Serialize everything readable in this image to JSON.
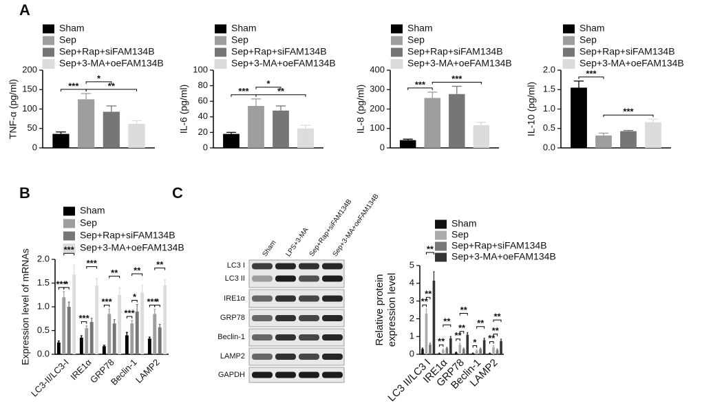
{
  "panel_labels": [
    "A",
    "B",
    "C"
  ],
  "blot": {
    "columns": [
      "Sham",
      "LPS+3-MA",
      "Sep+Rap+siFAM134B",
      "Sep+3-MA+oeFAM134B"
    ],
    "rows": [
      "LC3 I",
      "LC3 II",
      "IRE1α",
      "GRP78",
      "Beclin-1",
      "LAMP2",
      "GAPDH"
    ]
  },
  "chart_data": [
    {
      "type": "bar",
      "y_label": "TNF-α (pg/ml)",
      "ylim": [
        0,
        200
      ],
      "yticks": [
        0,
        50,
        100,
        150,
        200
      ],
      "series": [
        {
          "name": "Sham",
          "color": "#000000",
          "values": [
            36
          ],
          "errors": [
            5
          ]
        },
        {
          "name": "Sep",
          "color": "#9e9e9e",
          "values": [
            125
          ],
          "errors": [
            15
          ]
        },
        {
          "name": "Sep+Rap+siFAM134B",
          "color": "#767676",
          "values": [
            93
          ],
          "errors": [
            15
          ]
        },
        {
          "name": "Sep+3-MA+oeFAM134B",
          "color": "#dcdcdc",
          "values": [
            62
          ],
          "errors": [
            8
          ]
        }
      ],
      "annotations": [
        "***",
        "*",
        "**"
      ]
    },
    {
      "type": "bar",
      "y_label": "IL-6 (pg/ml)",
      "ylim": [
        0,
        100
      ],
      "yticks": [
        0,
        20,
        40,
        60,
        80,
        100
      ],
      "series": [
        {
          "name": "Sham",
          "color": "#000000",
          "values": [
            18
          ],
          "errors": [
            2
          ]
        },
        {
          "name": "Sep",
          "color": "#9e9e9e",
          "values": [
            54
          ],
          "errors": [
            9
          ]
        },
        {
          "name": "Sep+Rap+siFAM134B",
          "color": "#767676",
          "values": [
            48
          ],
          "errors": [
            6
          ]
        },
        {
          "name": "Sep+3-MA+oeFAM134B",
          "color": "#dcdcdc",
          "values": [
            25
          ],
          "errors": [
            4
          ]
        }
      ],
      "annotations": [
        "***",
        "*",
        "**"
      ]
    },
    {
      "type": "bar",
      "y_label": "IL-8 (pg/ml)",
      "ylim": [
        0,
        400
      ],
      "yticks": [
        0,
        100,
        200,
        300,
        400
      ],
      "series": [
        {
          "name": "Sham",
          "color": "#000000",
          "values": [
            40
          ],
          "errors": [
            5
          ]
        },
        {
          "name": "Sep",
          "color": "#9e9e9e",
          "values": [
            257
          ],
          "errors": [
            30
          ]
        },
        {
          "name": "Sep+Rap+siFAM134B",
          "color": "#767676",
          "values": [
            277
          ],
          "errors": [
            40
          ]
        },
        {
          "name": "Sep+3-MA+oeFAM134B",
          "color": "#dcdcdc",
          "values": [
            117
          ],
          "errors": [
            15
          ]
        }
      ],
      "annotations": [
        "***",
        "***"
      ]
    },
    {
      "type": "bar",
      "y_label": "IL-10 (pg/ml)",
      "ylim": [
        0,
        2
      ],
      "yticks": [
        {
          "value": 0,
          "label": "0.0"
        },
        0.5,
        {
          "value": 1,
          "label": "1.0"
        },
        1.5,
        {
          "value": 2,
          "label": "2.0"
        }
      ],
      "series": [
        {
          "name": "Sham",
          "color": "#000000",
          "values": [
            1.55
          ],
          "errors": [
            0.17
          ]
        },
        {
          "name": "Sep",
          "color": "#9e9e9e",
          "values": [
            0.32
          ],
          "errors": [
            0.06
          ]
        },
        {
          "name": "Sep+Rap+siFAM134B",
          "color": "#767676",
          "values": [
            0.43
          ],
          "errors": [
            0.02
          ]
        },
        {
          "name": "Sep+3-MA+oeFAM134B",
          "color": "#dcdcdc",
          "values": [
            0.66
          ],
          "errors": [
            0.08
          ]
        }
      ],
      "annotations": [
        "***",
        "***"
      ]
    },
    {
      "type": "bar",
      "y_label": "Expression level of mRNAs",
      "ylim": [
        0,
        2
      ],
      "yticks": [
        {
          "value": 0,
          "label": "0.0"
        },
        0.5,
        {
          "value": 1,
          "label": "1.0"
        },
        1.5,
        {
          "value": 2,
          "label": "2.0"
        }
      ],
      "categories": [
        "LC3-II/LC3-I",
        "IRE1α",
        "GRP78",
        "Beclin-1",
        "LAMP2"
      ],
      "series": [
        {
          "name": "Sham",
          "color": "#000000",
          "values": [
            0.25,
            0.35,
            0.17,
            0.4,
            0.33
          ],
          "errors": [
            0.03,
            0.04,
            0.02,
            0.06,
            0.03
          ]
        },
        {
          "name": "Sep",
          "color": "#9e9e9e",
          "values": [
            1.2,
            0.55,
            0.85,
            0.65,
            0.85
          ],
          "errors": [
            0.12,
            0.05,
            0.1,
            0.06,
            0.1
          ]
        },
        {
          "name": "Sep+Rap+siFAM134B",
          "color": "#767676",
          "values": [
            1.0,
            0.68,
            0.65,
            0.9,
            0.57
          ],
          "errors": [
            0.1,
            0.08,
            0.08,
            0.15,
            0.06
          ]
        },
        {
          "name": "Sep+3-MA+oeFAM134B",
          "color": "#dcdcdc",
          "values": [
            1.68,
            1.45,
            1.25,
            1.3,
            1.45
          ],
          "errors": [
            0.2,
            0.15,
            0.15,
            0.15,
            0.12
          ]
        }
      ],
      "annotations": [
        "***",
        "*",
        "***",
        "***",
        "***",
        "***",
        "**",
        "***",
        "*",
        "**",
        "***",
        "*",
        "**"
      ]
    },
    {
      "type": "bar",
      "y_label": [
        "Relative protein",
        "expression level"
      ],
      "ylim": [
        0,
        5
      ],
      "yticks": [
        0,
        1,
        2,
        3,
        4,
        5
      ],
      "categories": [
        "LC3 II/LC3 I",
        "IRE1α",
        "GRP78",
        "Beclin-1",
        "LAMP2"
      ],
      "series": [
        {
          "name": "Sham",
          "color": "#111111",
          "values": [
            0.3,
            0.05,
            0.1,
            0.05,
            0.05
          ],
          "errors": [
            0.05,
            0.02,
            0.02,
            0.02,
            0.02
          ]
        },
        {
          "name": "Sep",
          "color": "#ababab",
          "values": [
            2.3,
            0.25,
            0.55,
            0.2,
            0.4
          ],
          "errors": [
            0.25,
            0.05,
            0.08,
            0.05,
            0.08
          ]
        },
        {
          "name": "Sep+Rap+siFAM134B",
          "color": "#777777",
          "values": [
            0.55,
            0.35,
            0.3,
            0.3,
            0.25
          ],
          "errors": [
            0.08,
            0.05,
            0.05,
            0.05,
            0.05
          ]
        },
        {
          "name": "Sep+3-MA+oeFAM134B",
          "color": "#333333",
          "values": [
            4.15,
            0.9,
            1.1,
            0.8,
            0.75
          ],
          "errors": [
            0.5,
            0.1,
            0.12,
            0.1,
            0.1
          ]
        }
      ],
      "annotations": [
        "**",
        "**",
        "**",
        "**",
        "**",
        "**",
        "**",
        "**",
        "*",
        "**",
        "**",
        "**",
        "**"
      ]
    }
  ]
}
